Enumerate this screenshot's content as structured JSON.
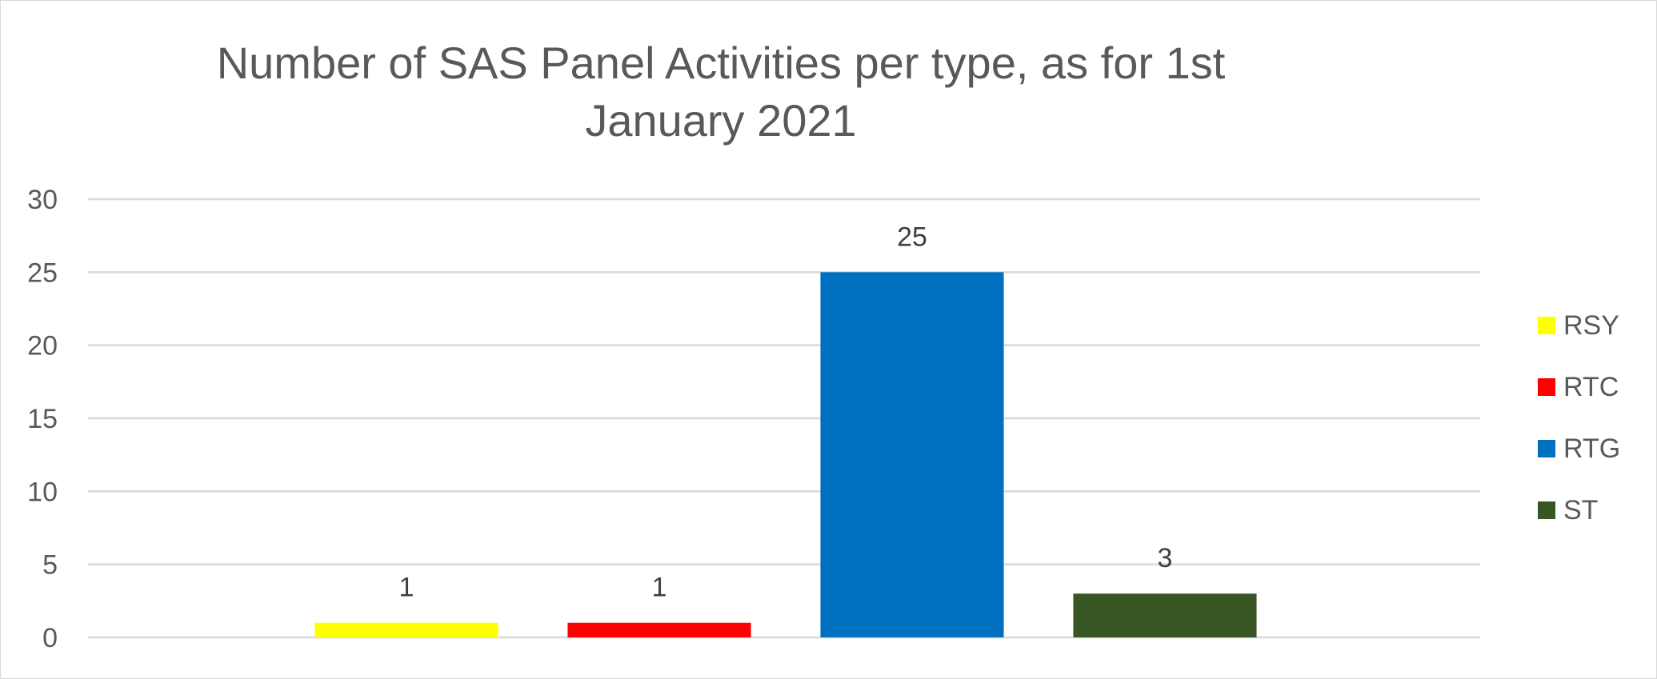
{
  "chart_data": {
    "type": "bar",
    "title": "Number of SAS Panel Activities per type, as for 1st January 2021",
    "xlabel": "",
    "ylabel": "",
    "ylim": [
      0,
      30
    ],
    "yticks": [
      0,
      5,
      10,
      15,
      20,
      25,
      30
    ],
    "grid": true,
    "legend_position": "right",
    "categories": [
      ""
    ],
    "series": [
      {
        "name": "RSY",
        "values": [
          1
        ],
        "color": "#FFFF00"
      },
      {
        "name": "RTC",
        "values": [
          1
        ],
        "color": "#FF0000"
      },
      {
        "name": "RTG",
        "values": [
          25
        ],
        "color": "#0070C0"
      },
      {
        "name": "ST",
        "values": [
          3
        ],
        "color": "#375623"
      }
    ],
    "data_labels": true
  }
}
